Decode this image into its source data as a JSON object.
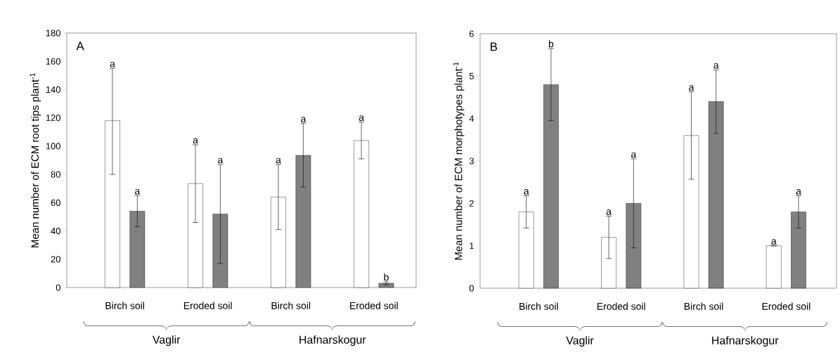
{
  "chart_data": [
    {
      "type": "bar",
      "title": "A",
      "ylabel": "Mean number of ECM root tips plant$^{-1}$",
      "categories": [
        "Birch soil",
        "Eroded soil",
        "Birch soil",
        "Eroded soil"
      ],
      "ylim": [
        0,
        180
      ],
      "yticks": [
        0,
        20,
        40,
        60,
        80,
        100,
        120,
        140,
        160,
        180
      ],
      "series": [
        {
          "color": "#ffffff",
          "values": [
            118,
            73.5,
            64,
            104
          ],
          "errors": [
            [
              80,
              155
            ],
            [
              46,
              101
            ],
            [
              41,
              87
            ],
            [
              91,
              117
            ]
          ]
        },
        {
          "color": "#808080",
          "values": [
            54,
            52,
            93.5,
            3
          ],
          "errors": [
            [
              43,
              65
            ],
            [
              17,
              87
            ],
            [
              71,
              116
            ],
            [
              2,
              4
            ]
          ]
        }
      ],
      "annotations": [
        "a",
        "a",
        "a",
        "a",
        "a",
        "a",
        "a",
        "b",
        "Vaglir",
        "Hafnarskogur"
      ]
    },
    {
      "type": "bar",
      "title": "B",
      "ylabel": "Mean number of ECM morphotypes plant$^{-1}$",
      "categories": [
        "Birch soil",
        "Eroded soil",
        "Birch soil",
        "Eroded soil"
      ],
      "ylim": [
        0,
        6
      ],
      "yticks": [
        0,
        1,
        2,
        3,
        4,
        5,
        6
      ],
      "series": [
        {
          "color": "#ffffff",
          "values": [
            1.8,
            1.2,
            3.6,
            1.0
          ],
          "errors": [
            [
              1.42,
              2.18
            ],
            [
              0.7,
              1.7
            ],
            [
              2.57,
              4.63
            ],
            null
          ]
        },
        {
          "color": "#808080",
          "values": [
            4.8,
            2.0,
            4.4,
            1.8
          ],
          "errors": [
            [
              3.95,
              5.65
            ],
            [
              0.95,
              3.05
            ],
            [
              3.65,
              5.15
            ],
            [
              1.42,
              2.18
            ]
          ]
        }
      ],
      "annotations": [
        "a",
        "b",
        "a",
        "a",
        "a",
        "a",
        "a",
        "a",
        "Vaglir",
        "Hafnarskogur"
      ]
    }
  ]
}
